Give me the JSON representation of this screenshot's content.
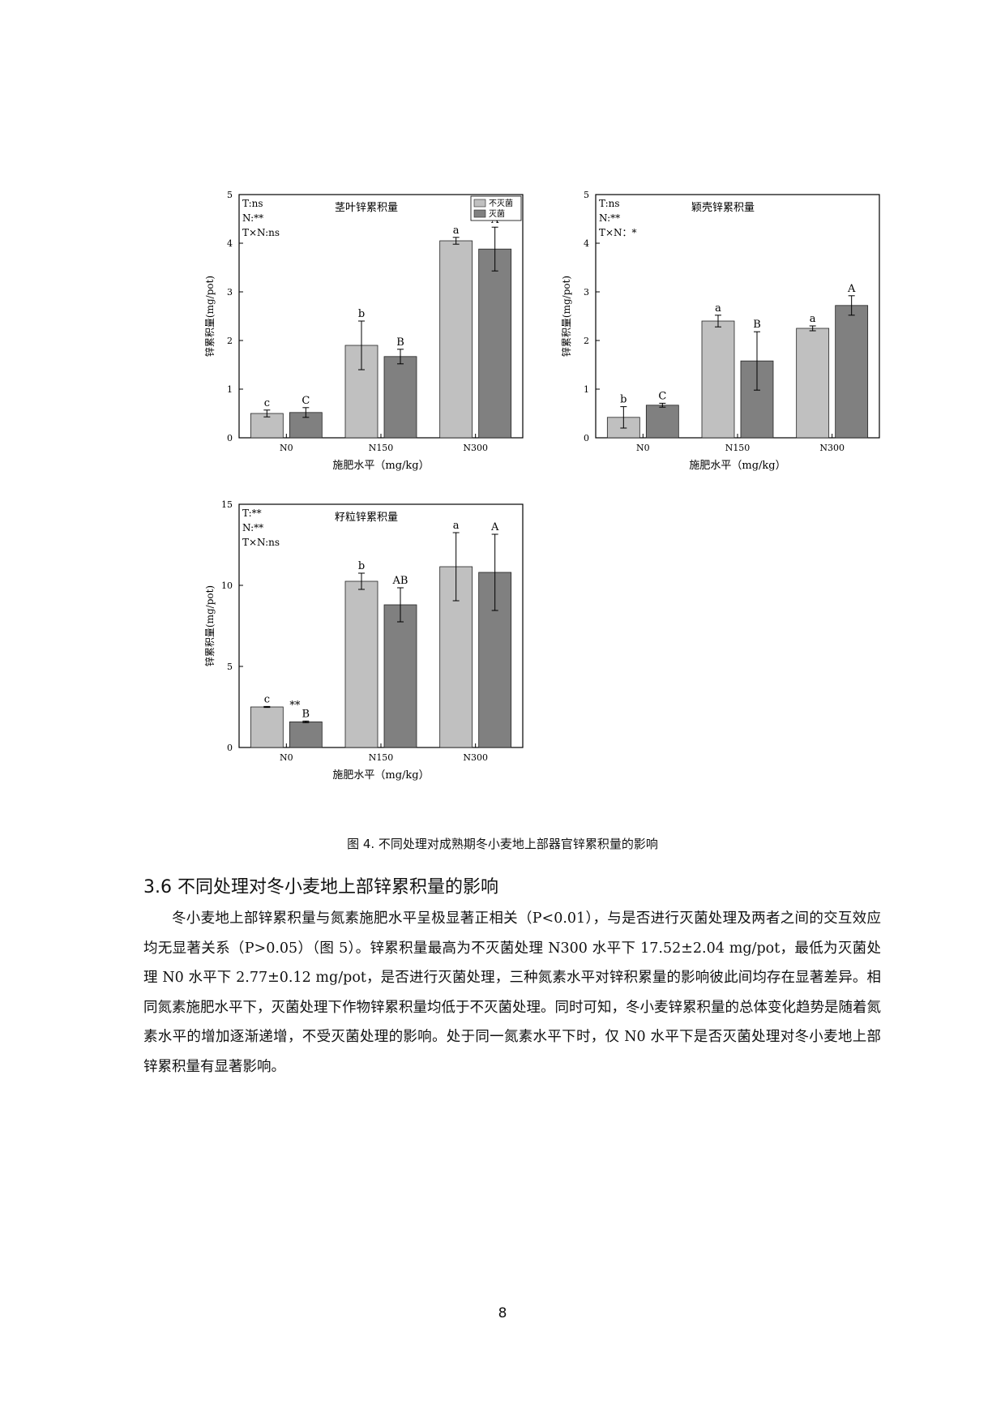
{
  "chart_data": [
    {
      "type": "bar",
      "title": "茎叶锌累积量",
      "xlabel": "施肥水平（mg/kg）",
      "ylabel": "锌累积量(mg/pot)",
      "categories": [
        "N0",
        "N150",
        "N300"
      ],
      "ylim": [
        0,
        5
      ],
      "yticks": [
        "0",
        "1",
        "2",
        "3",
        "4",
        "5"
      ],
      "stats": [
        "T:ns",
        "N:**",
        "T×N:ns"
      ],
      "legend": {
        "placement": "top-right",
        "entries": [
          "不灭菌",
          "灭菌"
        ]
      },
      "series": [
        {
          "name": "不灭菌",
          "color": "#c0c0c0",
          "values": [
            0.5,
            1.9,
            4.05
          ],
          "errors": [
            0.07,
            0.5,
            0.07
          ],
          "letters": [
            "c",
            "b",
            "a"
          ]
        },
        {
          "name": "灭菌",
          "color": "#808080",
          "values": [
            0.52,
            1.67,
            3.88
          ],
          "errors": [
            0.1,
            0.15,
            0.45
          ],
          "letters": [
            "C",
            "B",
            "A"
          ]
        }
      ],
      "annotations": [
        "",
        "",
        ""
      ]
    },
    {
      "type": "bar",
      "title": "颖壳锌累积量",
      "xlabel": "施肥水平（mg/kg）",
      "ylabel": "锌累积量(mg/pot)",
      "categories": [
        "N0",
        "N150",
        "N300"
      ],
      "ylim": [
        0,
        5
      ],
      "yticks": [
        "0",
        "1",
        "2",
        "3",
        "4",
        "5"
      ],
      "stats": [
        "T:ns",
        "N:**",
        "T×N：*"
      ],
      "series": [
        {
          "name": "不灭菌",
          "color": "#c0c0c0",
          "values": [
            0.42,
            2.4,
            2.25
          ],
          "errors": [
            0.22,
            0.12,
            0.05
          ],
          "letters": [
            "b",
            "a",
            "a"
          ]
        },
        {
          "name": "灭菌",
          "color": "#808080",
          "values": [
            0.67,
            1.58,
            2.72
          ],
          "errors": [
            0.04,
            0.6,
            0.2
          ],
          "letters": [
            "C",
            "B",
            "A"
          ]
        }
      ],
      "annotations": [
        "",
        "",
        ""
      ]
    },
    {
      "type": "bar",
      "title": "籽粒锌累积量",
      "xlabel": "施肥水平（mg/kg）",
      "ylabel": "锌累积量(mg/pot)",
      "categories": [
        "N0",
        "N150",
        "N300"
      ],
      "ylim": [
        0,
        15
      ],
      "yticks": [
        "0",
        "5",
        "10",
        "15"
      ],
      "stats": [
        "T:**",
        "N:**",
        "T×N:ns"
      ],
      "series": [
        {
          "name": "不灭菌",
          "color": "#c0c0c0",
          "values": [
            2.5,
            10.25,
            11.15
          ],
          "errors": [
            0.03,
            0.5,
            2.1
          ],
          "letters": [
            "c",
            "b",
            "a"
          ]
        },
        {
          "name": "灭菌",
          "color": "#808080",
          "values": [
            1.58,
            8.8,
            10.8
          ],
          "errors": [
            0.05,
            1.05,
            2.35
          ],
          "letters": [
            "B",
            "AB",
            "A"
          ]
        }
      ],
      "annotations": [
        "**",
        "",
        ""
      ]
    }
  ],
  "figure_caption": "图 4. 不同处理对成熟期冬小麦地上部器官锌累积量的影响",
  "section": {
    "title": "3.6 不同处理对冬小麦地上部锌累积量的影响",
    "paragraph": "冬小麦地上部锌累积量与氮素施肥水平呈极显著正相关（P<0.01），与是否进行灭菌处理及两者之间的交互效应均无显著关系（P>0.05）（图 5）。锌累积量最高为不灭菌处理 N300 水平下 17.52±2.04 mg/pot，最低为灭菌处理 N0 水平下 2.77±0.12 mg/pot，是否进行灭菌处理，三种氮素水平对锌积累量的影响彼此间均存在显著差异。相同氮素施肥水平下，灭菌处理下作物锌累积量均低于不灭菌处理。同时可知，冬小麦锌累积量的总体变化趋势是随着氮素水平的增加逐渐递增，不受灭菌处理的影响。处于同一氮素水平下时，仅 N0 水平下是否灭菌处理对冬小麦地上部锌累积量有显著影响。"
  },
  "page_number": "8"
}
